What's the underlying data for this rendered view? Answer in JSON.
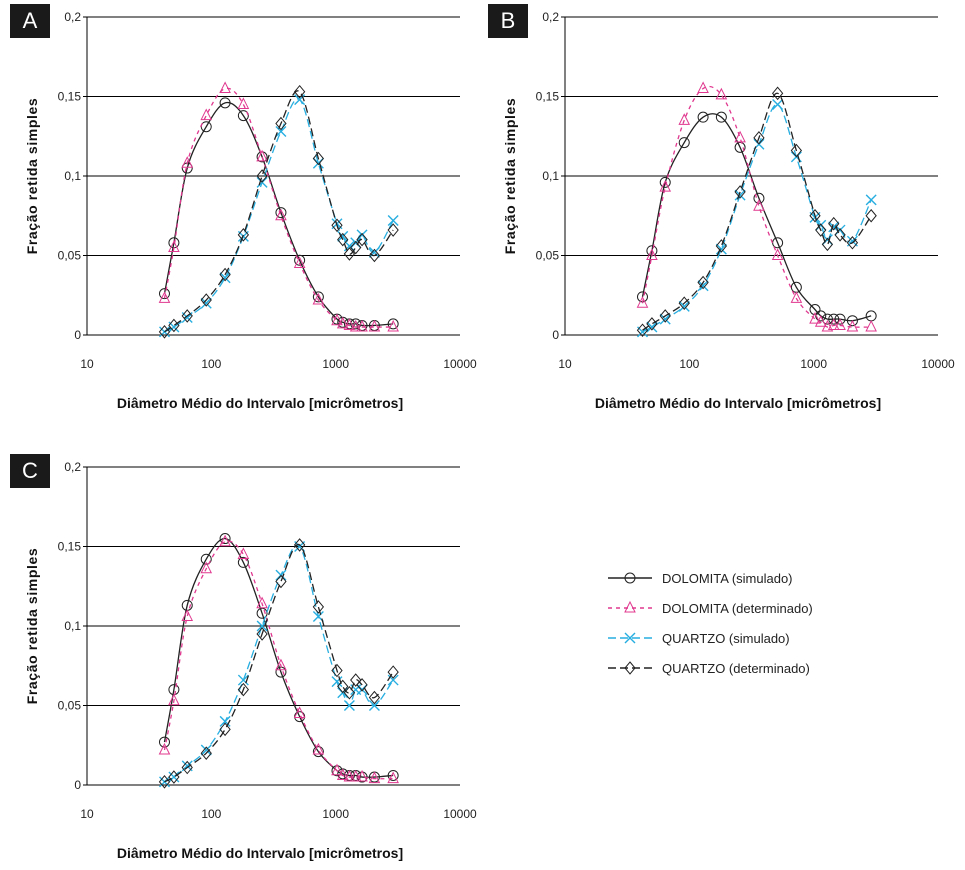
{
  "legend": [
    {
      "label": "DOLOMITA (simulado)",
      "color": "#222222",
      "marker": "circle",
      "dash": "none"
    },
    {
      "label": "DOLOMITA (determinado)",
      "color": "#e0388f",
      "marker": "triangle",
      "dash": "4,4"
    },
    {
      "label": "QUARTZO (simulado)",
      "color": "#27aee0",
      "marker": "x",
      "dash": "8,4"
    },
    {
      "label": "QUARTZO (determinado)",
      "color": "#222222",
      "marker": "diamond",
      "dash": "8,4"
    }
  ],
  "chart_data": [
    {
      "type": "line",
      "panel_label": "A",
      "xlabel": "Diâmetro Médio do Intervalo [micrômetros]",
      "ylabel": "Fração retida simples",
      "xscale": "log",
      "xlim": [
        10,
        10000
      ],
      "ylim": [
        0,
        0.2
      ],
      "xticks": [
        "10",
        "100",
        "1000",
        "10000"
      ],
      "yticks": [
        "0",
        "0,05",
        "0,1",
        "0,15",
        "0,2"
      ],
      "grid": "horizontal",
      "series": [
        {
          "name": "DOLOMITA (simulado)",
          "x": [
            42,
            50,
            64,
            91,
            129,
            181,
            256,
            363,
            513,
            726,
            1025,
            1140,
            1290,
            1450,
            1630,
            2050,
            2900
          ],
          "y": [
            0.026,
            0.058,
            0.105,
            0.131,
            0.146,
            0.138,
            0.112,
            0.077,
            0.047,
            0.024,
            0.01,
            0.008,
            0.007,
            0.007,
            0.006,
            0.006,
            0.007
          ]
        },
        {
          "name": "DOLOMITA (determinado)",
          "x": [
            42,
            50,
            64,
            91,
            129,
            181,
            256,
            363,
            513,
            726,
            1025,
            1140,
            1290,
            1450,
            1630,
            2050,
            2900
          ],
          "y": [
            0.023,
            0.055,
            0.108,
            0.138,
            0.155,
            0.145,
            0.112,
            0.075,
            0.045,
            0.022,
            0.009,
            0.007,
            0.006,
            0.005,
            0.005,
            0.005,
            0.005
          ]
        },
        {
          "name": "QUARTZO (simulado)",
          "x": [
            42,
            50,
            64,
            91,
            129,
            181,
            256,
            363,
            513,
            726,
            1025,
            1140,
            1290,
            1450,
            1630,
            2050,
            2900
          ],
          "y": [
            0.002,
            0.005,
            0.011,
            0.02,
            0.036,
            0.062,
            0.096,
            0.128,
            0.148,
            0.108,
            0.07,
            0.062,
            0.056,
            0.058,
            0.063,
            0.052,
            0.072
          ]
        },
        {
          "name": "QUARTZO (determinado)",
          "x": [
            42,
            50,
            64,
            91,
            129,
            181,
            256,
            363,
            513,
            726,
            1025,
            1140,
            1290,
            1450,
            1630,
            2050,
            2900
          ],
          "y": [
            0.002,
            0.006,
            0.012,
            0.022,
            0.038,
            0.063,
            0.1,
            0.133,
            0.153,
            0.111,
            0.069,
            0.06,
            0.051,
            0.055,
            0.06,
            0.05,
            0.066
          ]
        }
      ]
    },
    {
      "type": "line",
      "panel_label": "B",
      "xlabel": "Diâmetro Médio do Intervalo [micrômetros]",
      "ylabel": "Fração retida simples",
      "xscale": "log",
      "xlim": [
        10,
        10000
      ],
      "ylim": [
        0,
        0.2
      ],
      "xticks": [
        "10",
        "100",
        "1000",
        "10000"
      ],
      "yticks": [
        "0",
        "0,05",
        "0,1",
        "0,15",
        "0,2"
      ],
      "grid": "horizontal",
      "series": [
        {
          "name": "DOLOMITA (simulado)",
          "x": [
            42,
            50,
            64,
            91,
            129,
            181,
            256,
            363,
            513,
            726,
            1025,
            1140,
            1290,
            1450,
            1630,
            2050,
            2900
          ],
          "y": [
            0.024,
            0.053,
            0.096,
            0.121,
            0.137,
            0.137,
            0.118,
            0.086,
            0.058,
            0.03,
            0.016,
            0.012,
            0.01,
            0.01,
            0.01,
            0.009,
            0.012
          ]
        },
        {
          "name": "DOLOMITA (determinado)",
          "x": [
            42,
            50,
            64,
            91,
            129,
            181,
            256,
            363,
            513,
            726,
            1025,
            1140,
            1290,
            1450,
            1630,
            2050,
            2900
          ],
          "y": [
            0.02,
            0.05,
            0.093,
            0.135,
            0.155,
            0.151,
            0.124,
            0.081,
            0.05,
            0.023,
            0.01,
            0.008,
            0.005,
            0.006,
            0.006,
            0.005,
            0.005
          ]
        },
        {
          "name": "QUARTZO (simulado)",
          "x": [
            42,
            50,
            64,
            91,
            129,
            181,
            256,
            363,
            513,
            726,
            1025,
            1140,
            1290,
            1450,
            1630,
            2050,
            2900
          ],
          "y": [
            0.002,
            0.005,
            0.01,
            0.018,
            0.031,
            0.054,
            0.088,
            0.12,
            0.145,
            0.112,
            0.074,
            0.069,
            0.06,
            0.068,
            0.066,
            0.059,
            0.085
          ]
        },
        {
          "name": "QUARTZO (determinado)",
          "x": [
            42,
            50,
            64,
            91,
            129,
            181,
            256,
            363,
            513,
            726,
            1025,
            1140,
            1290,
            1450,
            1630,
            2050,
            2900
          ],
          "y": [
            0.003,
            0.007,
            0.012,
            0.02,
            0.033,
            0.056,
            0.09,
            0.124,
            0.152,
            0.116,
            0.075,
            0.066,
            0.057,
            0.07,
            0.063,
            0.058,
            0.075
          ]
        }
      ]
    },
    {
      "type": "line",
      "panel_label": "C",
      "xlabel": "Diâmetro Médio do Intervalo [micrômetros]",
      "ylabel": "Fração retida simples",
      "xscale": "log",
      "xlim": [
        10,
        10000
      ],
      "ylim": [
        0,
        0.2
      ],
      "xticks": [
        "10",
        "100",
        "1000",
        "10000"
      ],
      "yticks": [
        "0",
        "0,05",
        "0,1",
        "0,15",
        "0,2"
      ],
      "grid": "horizontal",
      "series": [
        {
          "name": "DOLOMITA (simulado)",
          "x": [
            42,
            50,
            64,
            91,
            129,
            181,
            256,
            363,
            513,
            726,
            1025,
            1140,
            1290,
            1450,
            1630,
            2050,
            2900
          ],
          "y": [
            0.027,
            0.06,
            0.113,
            0.142,
            0.155,
            0.14,
            0.108,
            0.071,
            0.043,
            0.021,
            0.009,
            0.007,
            0.006,
            0.006,
            0.005,
            0.005,
            0.006
          ]
        },
        {
          "name": "DOLOMITA (determinado)",
          "x": [
            42,
            50,
            64,
            91,
            129,
            181,
            256,
            363,
            513,
            726,
            1025,
            1140,
            1290,
            1450,
            1630,
            2050,
            2900
          ],
          "y": [
            0.022,
            0.053,
            0.106,
            0.136,
            0.153,
            0.145,
            0.114,
            0.075,
            0.045,
            0.022,
            0.009,
            0.006,
            0.005,
            0.005,
            0.005,
            0.004,
            0.004
          ]
        },
        {
          "name": "QUARTZO (simulado)",
          "x": [
            42,
            50,
            64,
            91,
            129,
            181,
            256,
            363,
            513,
            726,
            1025,
            1140,
            1290,
            1450,
            1630,
            2050,
            2900
          ],
          "y": [
            0.002,
            0.005,
            0.012,
            0.022,
            0.04,
            0.066,
            0.1,
            0.132,
            0.15,
            0.106,
            0.065,
            0.058,
            0.05,
            0.06,
            0.06,
            0.05,
            0.066
          ]
        },
        {
          "name": "QUARTZO (determinado)",
          "x": [
            42,
            50,
            64,
            91,
            129,
            181,
            256,
            363,
            513,
            726,
            1025,
            1140,
            1290,
            1450,
            1630,
            2050,
            2900
          ],
          "y": [
            0.002,
            0.005,
            0.011,
            0.02,
            0.035,
            0.06,
            0.095,
            0.128,
            0.151,
            0.112,
            0.072,
            0.062,
            0.058,
            0.066,
            0.063,
            0.055,
            0.071
          ]
        }
      ]
    }
  ]
}
